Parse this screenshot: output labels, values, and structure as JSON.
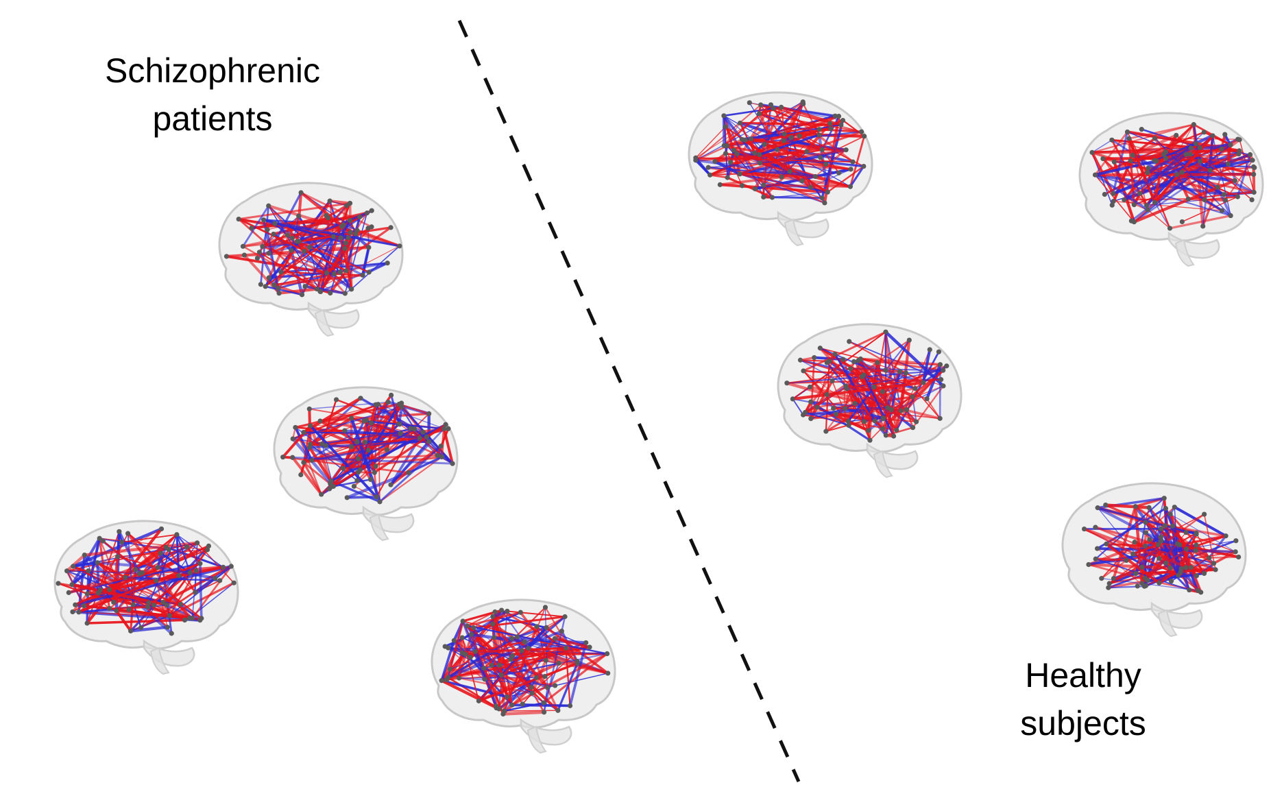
{
  "labels": {
    "schizophrenic": {
      "line1": "Schizophrenic",
      "line2": "patients"
    },
    "healthy": {
      "line1": "Healthy",
      "line2": "subjects"
    }
  },
  "groups": [
    {
      "group": "schizophrenic",
      "brain_count": 4
    },
    {
      "group": "healthy",
      "brain_count": 4
    }
  ],
  "colors": {
    "connection_positive": "#e8131b",
    "connection_negative": "#2a2ad6",
    "node": "#5a5a5a",
    "brain_surface": "#d9d9d9",
    "divider": "#111111"
  }
}
